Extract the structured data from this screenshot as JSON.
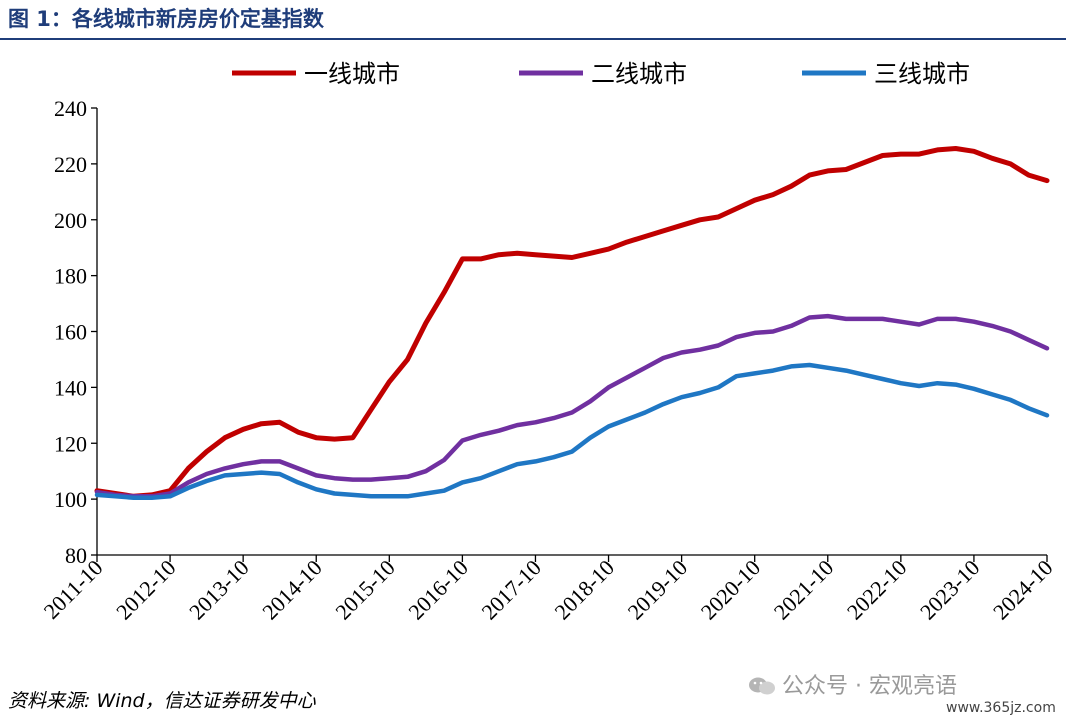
{
  "figure": {
    "title": "图 1：各线城市新房房价定基指数",
    "source": "资料来源: Wind，信达证券研发中心",
    "watermark": "公众号 · 宏观亮语",
    "site": "www.365jz.com"
  },
  "chart_data": {
    "type": "line",
    "title": "",
    "xlabel": "",
    "ylabel": "",
    "ylim": [
      80,
      240
    ],
    "yticks": [
      80,
      100,
      120,
      140,
      160,
      180,
      200,
      220,
      240
    ],
    "xlim": [
      "2011-10",
      "2024-10"
    ],
    "xticks": [
      "2011-10",
      "2012-10",
      "2013-10",
      "2014-10",
      "2015-10",
      "2016-10",
      "2017-10",
      "2018-10",
      "2019-10",
      "2020-10",
      "2021-10",
      "2022-10",
      "2023-10",
      "2024-10"
    ],
    "grid": false,
    "legend": "top",
    "series": [
      {
        "name": "一线城市",
        "color": "#c00000",
        "points": [
          [
            "2011-10",
            103
          ],
          [
            "2012-01",
            102
          ],
          [
            "2012-04",
            101
          ],
          [
            "2012-07",
            101.5
          ],
          [
            "2012-10",
            103
          ],
          [
            "2013-01",
            111
          ],
          [
            "2013-04",
            117
          ],
          [
            "2013-07",
            122
          ],
          [
            "2013-10",
            125
          ],
          [
            "2014-01",
            127
          ],
          [
            "2014-04",
            127.5
          ],
          [
            "2014-07",
            124
          ],
          [
            "2014-10",
            122
          ],
          [
            "2015-01",
            121.5
          ],
          [
            "2015-04",
            122
          ],
          [
            "2015-07",
            132
          ],
          [
            "2015-10",
            142
          ],
          [
            "2016-01",
            150
          ],
          [
            "2016-04",
            163
          ],
          [
            "2016-07",
            174
          ],
          [
            "2016-10",
            186
          ],
          [
            "2017-01",
            186
          ],
          [
            "2017-04",
            187.5
          ],
          [
            "2017-07",
            188
          ],
          [
            "2017-10",
            187.5
          ],
          [
            "2018-01",
            187
          ],
          [
            "2018-04",
            186.5
          ],
          [
            "2018-07",
            188
          ],
          [
            "2018-10",
            189.5
          ],
          [
            "2019-01",
            192
          ],
          [
            "2019-04",
            194
          ],
          [
            "2019-07",
            196
          ],
          [
            "2019-10",
            198
          ],
          [
            "2020-01",
            200
          ],
          [
            "2020-04",
            201
          ],
          [
            "2020-07",
            204
          ],
          [
            "2020-10",
            207
          ],
          [
            "2021-01",
            209
          ],
          [
            "2021-04",
            212
          ],
          [
            "2021-07",
            216
          ],
          [
            "2021-10",
            217.5
          ],
          [
            "2022-01",
            218
          ],
          [
            "2022-04",
            220.5
          ],
          [
            "2022-07",
            223
          ],
          [
            "2022-10",
            223.5
          ],
          [
            "2023-01",
            223.5
          ],
          [
            "2023-04",
            225
          ],
          [
            "2023-07",
            225.5
          ],
          [
            "2023-10",
            224.5
          ],
          [
            "2024-01",
            222
          ],
          [
            "2024-04",
            220
          ],
          [
            "2024-07",
            216
          ],
          [
            "2024-10",
            214
          ]
        ]
      },
      {
        "name": "二线城市",
        "color": "#7030a0",
        "points": [
          [
            "2011-10",
            102.5
          ],
          [
            "2012-01",
            101.5
          ],
          [
            "2012-04",
            101
          ],
          [
            "2012-07",
            101
          ],
          [
            "2012-10",
            102
          ],
          [
            "2013-01",
            106
          ],
          [
            "2013-04",
            109
          ],
          [
            "2013-07",
            111
          ],
          [
            "2013-10",
            112.5
          ],
          [
            "2014-01",
            113.5
          ],
          [
            "2014-04",
            113.5
          ],
          [
            "2014-07",
            111
          ],
          [
            "2014-10",
            108.5
          ],
          [
            "2015-01",
            107.5
          ],
          [
            "2015-04",
            107
          ],
          [
            "2015-07",
            107
          ],
          [
            "2015-10",
            107.5
          ],
          [
            "2016-01",
            108
          ],
          [
            "2016-04",
            110
          ],
          [
            "2016-07",
            114
          ],
          [
            "2016-10",
            121
          ],
          [
            "2017-01",
            123
          ],
          [
            "2017-04",
            124.5
          ],
          [
            "2017-07",
            126.5
          ],
          [
            "2017-10",
            127.5
          ],
          [
            "2018-01",
            129
          ],
          [
            "2018-04",
            131
          ],
          [
            "2018-07",
            135
          ],
          [
            "2018-10",
            140
          ],
          [
            "2019-01",
            143.5
          ],
          [
            "2019-04",
            147
          ],
          [
            "2019-07",
            150.5
          ],
          [
            "2019-10",
            152.5
          ],
          [
            "2020-01",
            153.5
          ],
          [
            "2020-04",
            155
          ],
          [
            "2020-07",
            158
          ],
          [
            "2020-10",
            159.5
          ],
          [
            "2021-01",
            160
          ],
          [
            "2021-04",
            162
          ],
          [
            "2021-07",
            165
          ],
          [
            "2021-10",
            165.5
          ],
          [
            "2022-01",
            164.5
          ],
          [
            "2022-04",
            164.5
          ],
          [
            "2022-07",
            164.5
          ],
          [
            "2022-10",
            163.5
          ],
          [
            "2023-01",
            162.5
          ],
          [
            "2023-04",
            164.5
          ],
          [
            "2023-07",
            164.5
          ],
          [
            "2023-10",
            163.5
          ],
          [
            "2024-01",
            162
          ],
          [
            "2024-04",
            160
          ],
          [
            "2024-07",
            157
          ],
          [
            "2024-10",
            154
          ]
        ]
      },
      {
        "name": "三线城市",
        "color": "#1f77c4",
        "points": [
          [
            "2011-10",
            101.5
          ],
          [
            "2012-01",
            101
          ],
          [
            "2012-04",
            100.5
          ],
          [
            "2012-07",
            100.5
          ],
          [
            "2012-10",
            101
          ],
          [
            "2013-01",
            104
          ],
          [
            "2013-04",
            106.5
          ],
          [
            "2013-07",
            108.5
          ],
          [
            "2013-10",
            109
          ],
          [
            "2014-01",
            109.5
          ],
          [
            "2014-04",
            109
          ],
          [
            "2014-07",
            106
          ],
          [
            "2014-10",
            103.5
          ],
          [
            "2015-01",
            102
          ],
          [
            "2015-04",
            101.5
          ],
          [
            "2015-07",
            101
          ],
          [
            "2015-10",
            101
          ],
          [
            "2016-01",
            101
          ],
          [
            "2016-04",
            102
          ],
          [
            "2016-07",
            103
          ],
          [
            "2016-10",
            106
          ],
          [
            "2017-01",
            107.5
          ],
          [
            "2017-04",
            110
          ],
          [
            "2017-07",
            112.5
          ],
          [
            "2017-10",
            113.5
          ],
          [
            "2018-01",
            115
          ],
          [
            "2018-04",
            117
          ],
          [
            "2018-07",
            122
          ],
          [
            "2018-10",
            126
          ],
          [
            "2019-01",
            128.5
          ],
          [
            "2019-04",
            131
          ],
          [
            "2019-07",
            134
          ],
          [
            "2019-10",
            136.5
          ],
          [
            "2020-01",
            138
          ],
          [
            "2020-04",
            140
          ],
          [
            "2020-07",
            144
          ],
          [
            "2020-10",
            145
          ],
          [
            "2021-01",
            146
          ],
          [
            "2021-04",
            147.5
          ],
          [
            "2021-07",
            148
          ],
          [
            "2021-10",
            147
          ],
          [
            "2022-01",
            146
          ],
          [
            "2022-04",
            144.5
          ],
          [
            "2022-07",
            143
          ],
          [
            "2022-10",
            141.5
          ],
          [
            "2023-01",
            140.5
          ],
          [
            "2023-04",
            141.5
          ],
          [
            "2023-07",
            141
          ],
          [
            "2023-10",
            139.5
          ],
          [
            "2024-01",
            137.5
          ],
          [
            "2024-04",
            135.5
          ],
          [
            "2024-07",
            132.5
          ],
          [
            "2024-10",
            130
          ]
        ]
      }
    ]
  }
}
